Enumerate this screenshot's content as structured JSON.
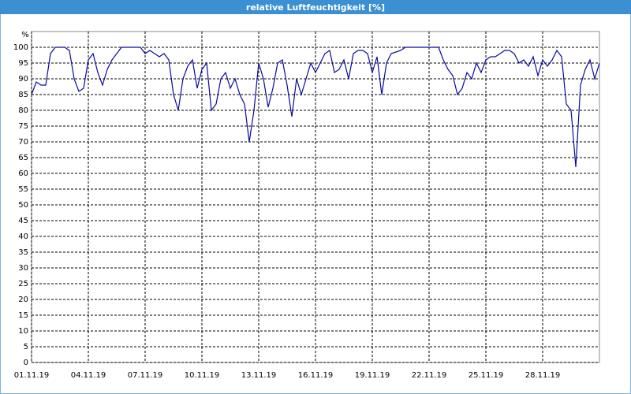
{
  "chart_data": {
    "type": "line",
    "title": "relative Luftfeuchtigkeit [%]",
    "y_label": "%",
    "color": "#0a0a9c",
    "grid": true,
    "xlim": [
      "2019-11-01T00:00",
      "2019-12-01T00:00"
    ],
    "xticks": [
      {
        "value": "2019-11-01T00:00",
        "label": "01.11.19"
      },
      {
        "value": "2019-11-04T00:00",
        "label": "04.11.19"
      },
      {
        "value": "2019-11-07T00:00",
        "label": "07.11.19"
      },
      {
        "value": "2019-11-10T00:00",
        "label": "10.11.19"
      },
      {
        "value": "2019-11-13T00:00",
        "label": "13.11.19"
      },
      {
        "value": "2019-11-16T00:00",
        "label": "16.11.19"
      },
      {
        "value": "2019-11-19T00:00",
        "label": "19.11.19"
      },
      {
        "value": "2019-11-22T00:00",
        "label": "22.11.19"
      },
      {
        "value": "2019-11-25T00:00",
        "label": "25.11.19"
      },
      {
        "value": "2019-11-28T00:00",
        "label": "28.11.19"
      }
    ],
    "ylim": [
      0,
      105
    ],
    "yticks": [
      0,
      5,
      10,
      15,
      20,
      25,
      30,
      35,
      40,
      45,
      50,
      55,
      60,
      65,
      70,
      75,
      80,
      85,
      90,
      95,
      100
    ],
    "x": [
      "2019-11-01T00:00",
      "2019-11-01T06:00",
      "2019-11-01T12:00",
      "2019-11-01T18:00",
      "2019-11-02T00:00",
      "2019-11-02T06:00",
      "2019-11-02T12:00",
      "2019-11-02T18:00",
      "2019-11-03T00:00",
      "2019-11-03T06:00",
      "2019-11-03T12:00",
      "2019-11-03T18:00",
      "2019-11-04T00:00",
      "2019-11-04T06:00",
      "2019-11-04T12:00",
      "2019-11-04T18:00",
      "2019-11-05T00:00",
      "2019-11-05T06:00",
      "2019-11-05T12:00",
      "2019-11-05T18:00",
      "2019-11-06T00:00",
      "2019-11-06T06:00",
      "2019-11-06T12:00",
      "2019-11-06T18:00",
      "2019-11-07T00:00",
      "2019-11-07T06:00",
      "2019-11-07T12:00",
      "2019-11-07T18:00",
      "2019-11-08T00:00",
      "2019-11-08T06:00",
      "2019-11-08T12:00",
      "2019-11-08T18:00",
      "2019-11-09T00:00",
      "2019-11-09T06:00",
      "2019-11-09T12:00",
      "2019-11-09T18:00",
      "2019-11-10T00:00",
      "2019-11-10T06:00",
      "2019-11-10T12:00",
      "2019-11-10T18:00",
      "2019-11-11T00:00",
      "2019-11-11T06:00",
      "2019-11-11T12:00",
      "2019-11-11T18:00",
      "2019-11-12T00:00",
      "2019-11-12T06:00",
      "2019-11-12T12:00",
      "2019-11-12T18:00",
      "2019-11-13T00:00",
      "2019-11-13T06:00",
      "2019-11-13T12:00",
      "2019-11-13T18:00",
      "2019-11-14T00:00",
      "2019-11-14T06:00",
      "2019-11-14T12:00",
      "2019-11-14T18:00",
      "2019-11-15T00:00",
      "2019-11-15T06:00",
      "2019-11-15T12:00",
      "2019-11-15T18:00",
      "2019-11-16T00:00",
      "2019-11-16T06:00",
      "2019-11-16T12:00",
      "2019-11-16T18:00",
      "2019-11-17T00:00",
      "2019-11-17T06:00",
      "2019-11-17T12:00",
      "2019-11-17T18:00",
      "2019-11-18T00:00",
      "2019-11-18T06:00",
      "2019-11-18T12:00",
      "2019-11-18T18:00",
      "2019-11-19T00:00",
      "2019-11-19T06:00",
      "2019-11-19T12:00",
      "2019-11-19T18:00",
      "2019-11-20T00:00",
      "2019-11-20T06:00",
      "2019-11-20T12:00",
      "2019-11-20T18:00",
      "2019-11-21T00:00",
      "2019-11-21T06:00",
      "2019-11-21T12:00",
      "2019-11-21T18:00",
      "2019-11-22T00:00",
      "2019-11-22T06:00",
      "2019-11-22T12:00",
      "2019-11-22T18:00",
      "2019-11-23T00:00",
      "2019-11-23T06:00",
      "2019-11-23T12:00",
      "2019-11-23T18:00",
      "2019-11-24T00:00",
      "2019-11-24T06:00",
      "2019-11-24T12:00",
      "2019-11-24T18:00",
      "2019-11-25T00:00",
      "2019-11-25T06:00",
      "2019-11-25T12:00",
      "2019-11-25T18:00",
      "2019-11-26T00:00",
      "2019-11-26T06:00",
      "2019-11-26T12:00",
      "2019-11-26T18:00",
      "2019-11-27T00:00",
      "2019-11-27T06:00",
      "2019-11-27T12:00",
      "2019-11-27T18:00",
      "2019-11-28T00:00",
      "2019-11-28T06:00",
      "2019-11-28T12:00",
      "2019-11-28T18:00",
      "2019-11-29T00:00",
      "2019-11-29T06:00",
      "2019-11-29T12:00",
      "2019-11-29T18:00",
      "2019-11-30T00:00",
      "2019-11-30T06:00",
      "2019-11-30T12:00",
      "2019-11-30T18:00",
      "2019-12-01T00:00"
    ],
    "values": [
      85,
      89,
      88,
      88,
      98,
      100,
      100,
      100,
      99,
      90,
      86,
      87,
      96,
      98,
      92,
      88,
      93,
      96,
      98,
      100,
      100,
      100,
      100,
      100,
      98,
      99,
      98,
      97,
      98,
      96,
      85,
      80,
      90,
      94,
      96,
      87,
      93,
      95,
      80,
      82,
      90,
      92,
      87,
      90,
      85,
      82,
      70,
      80,
      95,
      90,
      81,
      87,
      95,
      96,
      88,
      78,
      90,
      85,
      90,
      95,
      92,
      95,
      98,
      99,
      92,
      93,
      96,
      90,
      98,
      99,
      99,
      98,
      92,
      97,
      85,
      95,
      98,
      98.5,
      99,
      100,
      100,
      100,
      100,
      100,
      100,
      100,
      100,
      96,
      93,
      91,
      85,
      87,
      92,
      90,
      95,
      92,
      96,
      97,
      97,
      98,
      99,
      99,
      98,
      95,
      96,
      94,
      97,
      91,
      96,
      94,
      96,
      99,
      97,
      82,
      80,
      62,
      88,
      93,
      96,
      90,
      95
    ]
  }
}
